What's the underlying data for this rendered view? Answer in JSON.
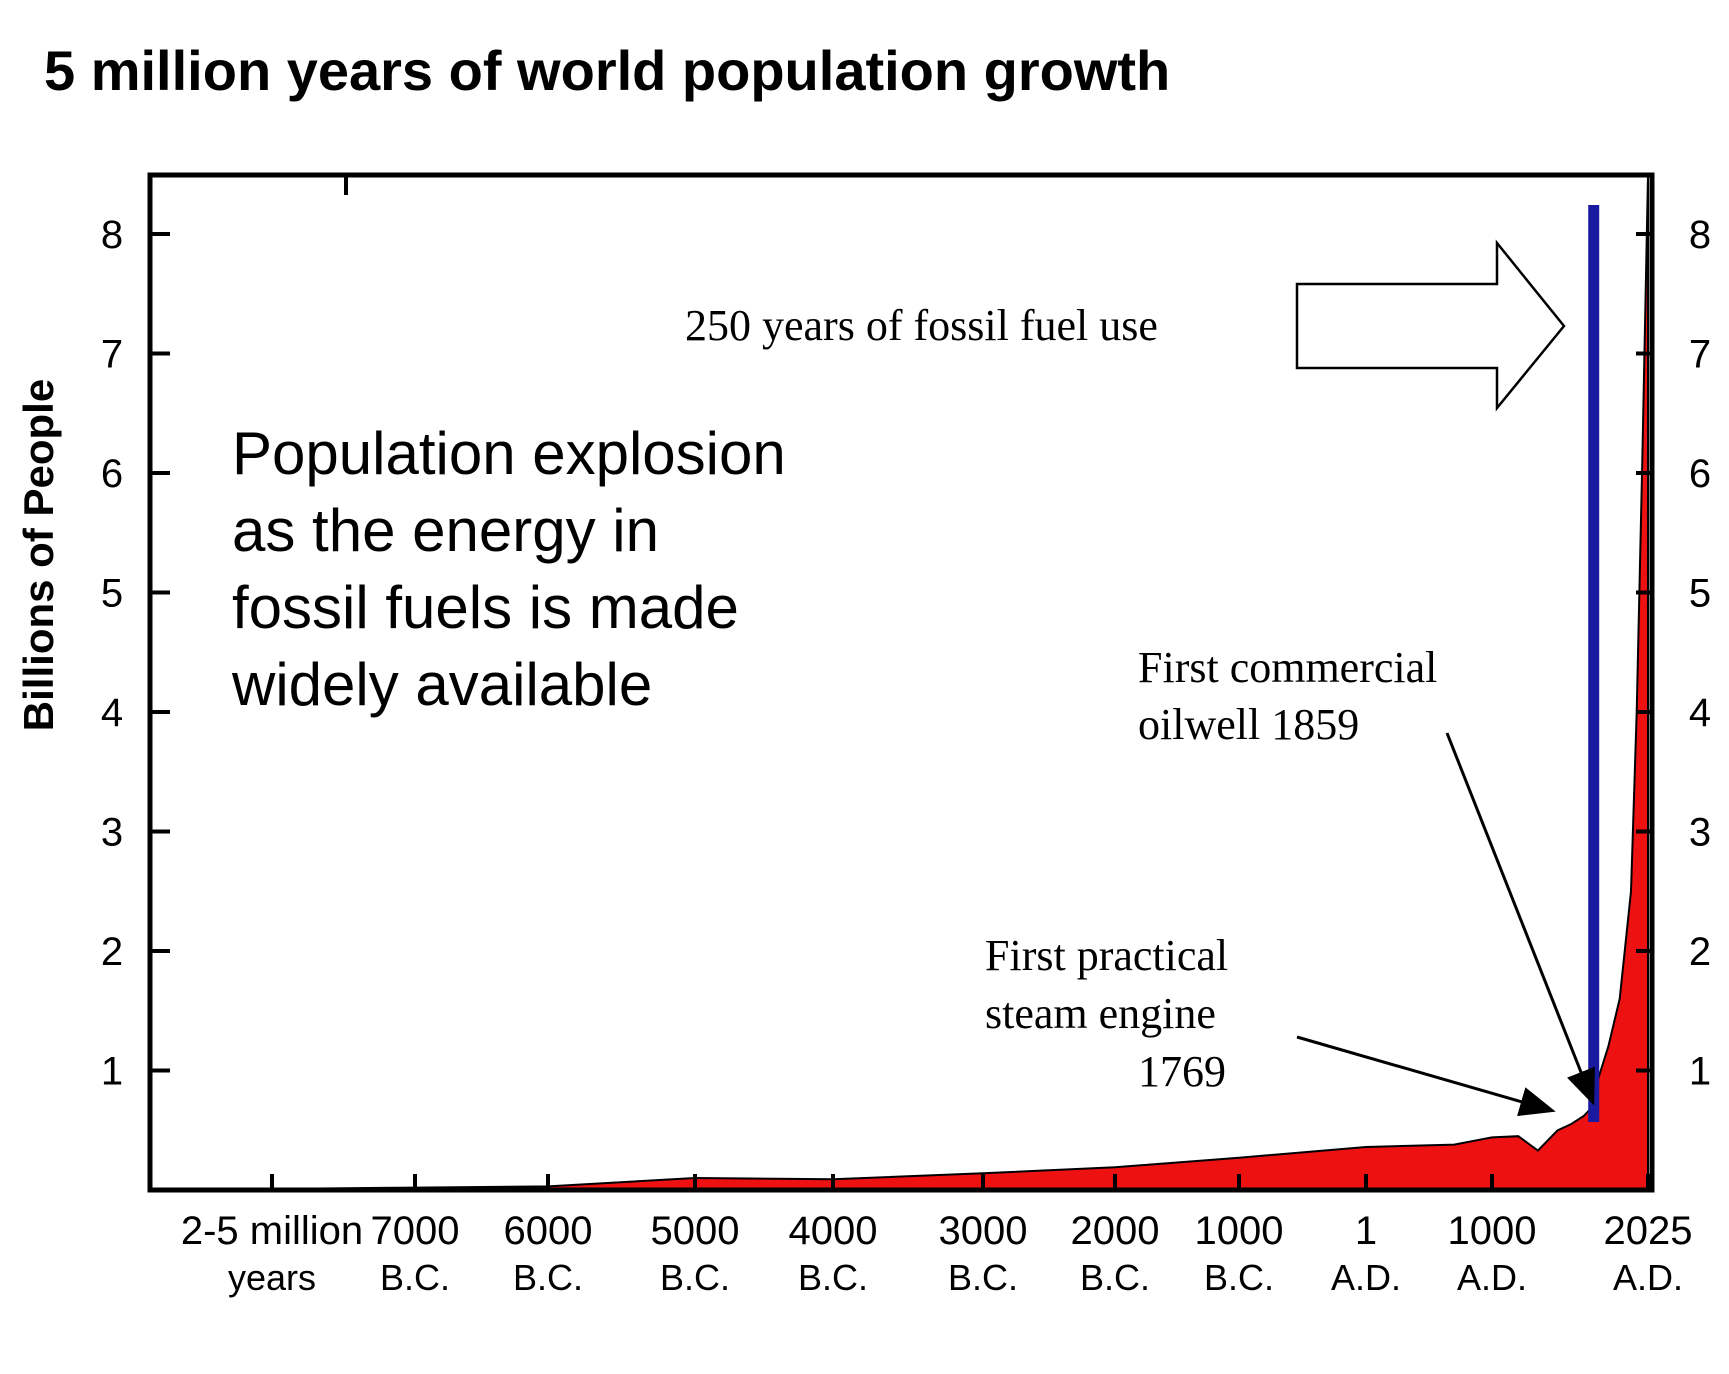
{
  "title": "5 million years of world population growth",
  "chart_data": {
    "type": "area",
    "ylabel": "Billions of People",
    "ylim": [
      0,
      8.5
    ],
    "y_ticks": [
      1,
      2,
      3,
      4,
      5,
      6,
      7,
      8
    ],
    "x_categories": [
      {
        "line1": "2-5 million",
        "line2": "years"
      },
      {
        "line1": "7000",
        "line2": "B.C."
      },
      {
        "line1": "6000",
        "line2": "B.C."
      },
      {
        "line1": "5000",
        "line2": "B.C."
      },
      {
        "line1": "4000",
        "line2": "B.C."
      },
      {
        "line1": "3000",
        "line2": "B.C."
      },
      {
        "line1": "2000",
        "line2": "B.C."
      },
      {
        "line1": "1000",
        "line2": "B.C."
      },
      {
        "line1": "1",
        "line2": "A.D."
      },
      {
        "line1": "1000",
        "line2": "A.D."
      },
      {
        "line1": "2025",
        "line2": "A.D."
      }
    ],
    "series": [
      {
        "color": "#ee1111",
        "points": [
          {
            "year": -8500,
            "value": 0.0
          },
          {
            "year": -7000,
            "value": 0.02
          },
          {
            "year": -6000,
            "value": 0.03
          },
          {
            "year": -5000,
            "value": 0.1
          },
          {
            "year": -4000,
            "value": 0.09
          },
          {
            "year": -3000,
            "value": 0.14
          },
          {
            "year": -2000,
            "value": 0.19
          },
          {
            "year": -1000,
            "value": 0.27
          },
          {
            "year": 1,
            "value": 0.36
          },
          {
            "year": 700,
            "value": 0.38
          },
          {
            "year": 1000,
            "value": 0.44
          },
          {
            "year": 1200,
            "value": 0.45
          },
          {
            "year": 1350,
            "value": 0.33
          },
          {
            "year": 1500,
            "value": 0.5
          },
          {
            "year": 1600,
            "value": 0.55
          },
          {
            "year": 1700,
            "value": 0.62
          },
          {
            "year": 1769,
            "value": 0.7
          },
          {
            "year": 1800,
            "value": 0.9
          },
          {
            "year": 1850,
            "value": 1.2
          },
          {
            "year": 1900,
            "value": 1.6
          },
          {
            "year": 1950,
            "value": 2.5
          },
          {
            "year": 1975,
            "value": 4.0
          },
          {
            "year": 2000,
            "value": 6.1
          },
          {
            "year": 2025,
            "value": 8.5
          }
        ]
      }
    ],
    "fossil_fuel_marker": {
      "year": 1775,
      "color": "#1a1aa0"
    },
    "annotations": {
      "fossil_fuel": "250 years of fossil fuel use",
      "explosion_lines": [
        "Population explosion",
        "as  the energy in",
        "fossil fuels is made",
        "widely available"
      ],
      "oilwell_lines": [
        "First commercial",
        "oilwell 1859"
      ],
      "steam_lines": [
        "First practical",
        "steam engine",
        "1769"
      ]
    }
  }
}
